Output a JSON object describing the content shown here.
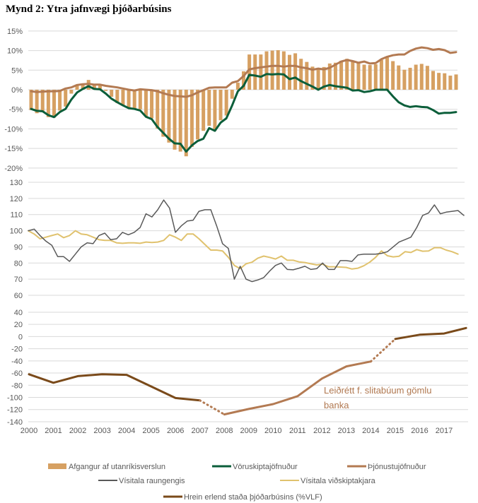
{
  "title": "Mynd 2: Ytra jafnvægi þjóðarbúsins",
  "colors": {
    "bars": "#d6a062",
    "goods": "#0b5e3a",
    "services": "#b37a52",
    "reer": "#595959",
    "tot": "#e0c26e",
    "iip": "#7a4a1a",
    "iip_adj": "#b37a52",
    "grid": "#d9d9d9"
  },
  "chart_data": [
    {
      "type": "bar+line",
      "frequency": "quarterly",
      "yticks": [
        "15%",
        "10%",
        "5%",
        "0%",
        "-5%",
        "-10%",
        "-15%",
        "-20%"
      ],
      "ylim": [
        -20,
        15
      ],
      "grid": true,
      "series": [
        {
          "name": "Afgangur af utanríkisverslun",
          "kind": "bar",
          "values": [
            -5.2,
            -6,
            -5.5,
            -7,
            -7.1,
            -5.3,
            -4.3,
            -1,
            1,
            1.5,
            2.5,
            1.3,
            1.4,
            -0.3,
            -1.8,
            -3.4,
            -3.9,
            -4.5,
            -4.8,
            -5,
            -6.8,
            -7.3,
            -9.9,
            -12,
            -13.5,
            -15.3,
            -15.8,
            -17,
            -14.6,
            -12.7,
            -10.5,
            -9.2,
            -10.5,
            -7.8,
            -6.6,
            -2.3,
            1.8,
            4.7,
            9,
            9,
            9,
            9.8,
            10,
            10.1,
            9.8,
            8.9,
            9.3,
            7.9,
            7.1,
            5.9,
            5.6,
            5.8,
            6.7,
            6.9,
            7.4,
            7.9,
            7.2,
            6.9,
            6.4,
            6.3,
            6.5,
            7.6,
            8.2,
            7.3,
            6.2,
            5.1,
            5.6,
            6.4,
            6.6,
            6.1,
            4.8,
            4.3,
            4.2,
            3.6,
            3.9
          ]
        },
        {
          "name": "Vöruskiptajöfnuður",
          "kind": "line",
          "values": [
            -4.9,
            -5.4,
            -5.5,
            -6.5,
            -7,
            -5.7,
            -4.9,
            -2.5,
            -0.7,
            0.2,
            0.9,
            0.2,
            0.1,
            -1,
            -2.3,
            -3.2,
            -4,
            -4.7,
            -4.9,
            -5.3,
            -6.9,
            -7.5,
            -9.5,
            -11,
            -12.5,
            -13.7,
            -13.8,
            -15.8,
            -14.2,
            -13.1,
            -12.5,
            -9.8,
            -10.5,
            -8.4,
            -7.3,
            -4.0,
            -0.4,
            1,
            3.8,
            3.6,
            3.3,
            4,
            3.9,
            4,
            3.9,
            2.7,
            3.1,
            2.2,
            1.5,
            0.8,
            0,
            0.8,
            1.2,
            0.9,
            0.7,
            0.5,
            -0.2,
            -0.1,
            -0.6,
            -0.4,
            0,
            0,
            0,
            -1.7,
            -3.2,
            -4.0,
            -4.4,
            -4.2,
            -4.4,
            -4.5,
            -5.2,
            -6.1,
            -5.9,
            -5.9,
            -5.7
          ]
        },
        {
          "name": "Þjónustujöfnuður",
          "kind": "line",
          "values": [
            -0.4,
            -0.6,
            -0.5,
            -0.4,
            -0.4,
            -0.3,
            0.3,
            0.6,
            1.2,
            1.4,
            1.5,
            1.3,
            1.3,
            1,
            0.8,
            0.6,
            0.3,
            0,
            -0.2,
            0.1,
            0,
            -0.1,
            -0.4,
            -0.9,
            -1.3,
            -1.6,
            -1.7,
            -1.8,
            -1.4,
            -0.7,
            -0.1,
            0.5,
            0.6,
            0.6,
            0.6,
            1.8,
            2.2,
            3.5,
            5.2,
            5.5,
            5.7,
            5.9,
            6.1,
            6.1,
            5.9,
            6.1,
            6.1,
            5.7,
            5.5,
            5.1,
            5.4,
            5.2,
            5.6,
            6.4,
            7.2,
            7.6,
            7.3,
            6.9,
            7.2,
            6.7,
            6.8,
            7.8,
            8.4,
            8.8,
            9.0,
            9.0,
            9.9,
            10.5,
            10.8,
            10.6,
            10.2,
            10.4,
            10.1,
            9.4,
            9.6
          ]
        }
      ]
    },
    {
      "type": "line",
      "frequency": "quarterly",
      "yticks": [
        "130",
        "120",
        "110",
        "100",
        "90",
        "80",
        "70",
        "60"
      ],
      "ylim": [
        60,
        130
      ],
      "grid": true,
      "series": [
        {
          "name": "Vísitala raungengis",
          "values": [
            100,
            101,
            97,
            93.5,
            91,
            84,
            84,
            81,
            85.5,
            90,
            92.5,
            92,
            97,
            98.5,
            94.5,
            95,
            99,
            97.5,
            99,
            102,
            110.5,
            108.5,
            113,
            119,
            114,
            99,
            103,
            106,
            106.5,
            112,
            113,
            113,
            103,
            92,
            89,
            70,
            78,
            70,
            68.5,
            69.5,
            71,
            75,
            78.5,
            80,
            76,
            75.8,
            76.8,
            78,
            76,
            76.5,
            80,
            76,
            76,
            81.5,
            81.5,
            81,
            85,
            85.5,
            85.5,
            85.5,
            86,
            87,
            90,
            93,
            94.5,
            96,
            102,
            109.5,
            111,
            116,
            110.5,
            111.5,
            112,
            112.5,
            109.5
          ]
        },
        {
          "name": "Vísitala viðskiptakjara",
          "values": [
            100,
            98,
            95,
            96,
            97,
            98,
            95.7,
            97,
            100,
            98,
            97.5,
            96,
            94.5,
            94,
            94,
            92.5,
            92.2,
            92.5,
            92.5,
            92.2,
            93,
            92.7,
            93,
            94,
            97.5,
            96,
            94,
            98,
            98,
            95,
            91.5,
            88,
            88,
            87.5,
            83.5,
            78.5,
            76.5,
            79.5,
            80.5,
            83,
            84.3,
            83.5,
            82.5,
            84.3,
            81.7,
            81.7,
            80.7,
            80.3,
            79.5,
            78.8,
            79.3,
            77.7,
            77.7,
            77.5,
            77.3,
            76.3,
            76.8,
            78.3,
            80.5,
            83.5,
            87.5,
            84.5,
            83.8,
            84.2,
            87,
            86.5,
            88.3,
            87.3,
            87.5,
            89.5,
            89.5,
            88,
            87,
            85.5
          ]
        }
      ]
    },
    {
      "type": "line",
      "yticks": [
        "40",
        "20",
        "0",
        "-20",
        "-40",
        "-60",
        "-80",
        "-100",
        "-120",
        "-140"
      ],
      "ylim": [
        -140,
        40
      ],
      "grid": true,
      "xticks": [
        "2000",
        "2001",
        "2002",
        "2003",
        "2004",
        "2005",
        "2006",
        "2007",
        "2008",
        "2009",
        "2010",
        "2011",
        "2012",
        "2013",
        "2014",
        "2015",
        "2016",
        "2017"
      ],
      "series": [
        {
          "name": "Hrein erlend staða þjóðarbúsins (%VLF)",
          "x": [
            2000,
            2001,
            2002,
            2003,
            2004,
            2005,
            2006,
            2007,
            2008,
            2009,
            2010,
            2011,
            2012,
            2013,
            2014,
            2015,
            2016,
            2017,
            2017.9
          ],
          "values": [
            -62,
            -76,
            -65,
            -62,
            -63,
            -82,
            -101,
            -105,
            -128,
            -119,
            -111,
            -98,
            -69,
            -49,
            -41,
            -4,
            3,
            5,
            14
          ]
        }
      ],
      "annotation": {
        "line1": "Leiðrétt f. slitabúum gömlu",
        "line2": "banka"
      }
    }
  ],
  "legend": [
    {
      "label": "Afgangur af utanríkisverslun",
      "kind": "bar"
    },
    {
      "label": "Vöruskiptajöfnuður",
      "kind": "line"
    },
    {
      "label": "Þjónustujöfnuður",
      "kind": "line"
    },
    {
      "label": "Vísitala raungengis",
      "kind": "line"
    },
    {
      "label": "Vísitala viðskiptakjara",
      "kind": "line"
    },
    {
      "label": "Hrein erlend staða þjóðarbúsins (%VLF)",
      "kind": "line"
    }
  ]
}
